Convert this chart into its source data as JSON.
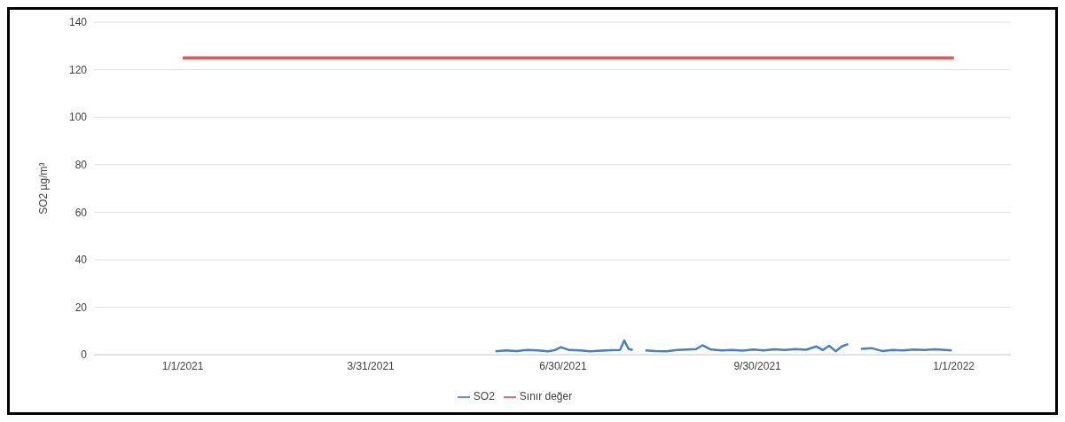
{
  "chart_data": {
    "type": "line",
    "ylabel": "SO2 µg/m³",
    "ylim": [
      0,
      140
    ],
    "yticks": [
      0,
      20,
      40,
      60,
      80,
      100,
      120,
      140
    ],
    "xlim": [
      "2020-11-20",
      "2022-01-28"
    ],
    "xticks": [
      {
        "value": "2021-01-01",
        "label": "1/1/2021"
      },
      {
        "value": "2021-03-31",
        "label": "3/31/2021"
      },
      {
        "value": "2021-06-30",
        "label": "6/30/2021"
      },
      {
        "value": "2021-09-30",
        "label": "9/30/2021"
      },
      {
        "value": "2022-01-01",
        "label": "1/1/2022"
      }
    ],
    "grid": "y",
    "legend": "bottom",
    "line_style": "solid",
    "marker": "none",
    "series": [
      {
        "name": "SO2",
        "color": "#4a7ec4",
        "x": [
          "2021-05-29",
          "2021-06-03",
          "2021-06-08",
          "2021-06-13",
          "2021-06-18",
          "2021-06-23",
          "2021-06-26",
          "2021-06-29",
          "2021-07-03",
          "2021-07-08",
          "2021-07-13",
          "2021-07-18",
          "2021-07-23",
          "2021-07-27",
          "2021-07-29",
          "2021-07-31",
          "2021-08-02",
          "2021-08-05",
          "2021-08-08",
          "2021-08-13",
          "2021-08-18",
          "2021-08-23",
          "2021-08-28",
          "2021-09-01",
          "2021-09-04",
          "2021-09-08",
          "2021-09-13",
          "2021-09-18",
          "2021-09-23",
          "2021-09-28",
          "2021-10-03",
          "2021-10-08",
          "2021-10-13",
          "2021-10-18",
          "2021-10-23",
          "2021-10-28",
          "2021-10-31",
          "2021-11-03",
          "2021-11-06",
          "2021-11-09",
          "2021-11-12",
          "2021-11-15",
          "2021-11-18",
          "2021-11-23",
          "2021-11-28",
          "2021-12-03",
          "2021-12-08",
          "2021-12-13",
          "2021-12-18",
          "2021-12-23",
          "2021-12-28",
          "2021-12-31"
        ],
        "values": [
          1.5,
          1.8,
          1.6,
          2.0,
          1.8,
          1.5,
          1.9,
          3.2,
          2.0,
          1.8,
          1.5,
          1.7,
          1.9,
          2.0,
          6.0,
          2.5,
          2.0,
          null,
          1.8,
          1.6,
          1.5,
          2.0,
          2.2,
          2.4,
          4.0,
          2.2,
          1.8,
          2.0,
          1.7,
          2.2,
          1.8,
          2.3,
          2.0,
          2.4,
          2.1,
          3.5,
          2.0,
          3.8,
          1.5,
          3.5,
          4.5,
          null,
          2.5,
          2.8,
          1.6,
          2.0,
          1.8,
          2.2,
          2.0,
          2.3,
          2.0,
          1.8
        ]
      },
      {
        "name": "Sınır değer",
        "color": "#e05a5a",
        "x": [
          "2021-01-01",
          "2022-01-01"
        ],
        "values": [
          125,
          125
        ]
      }
    ]
  }
}
